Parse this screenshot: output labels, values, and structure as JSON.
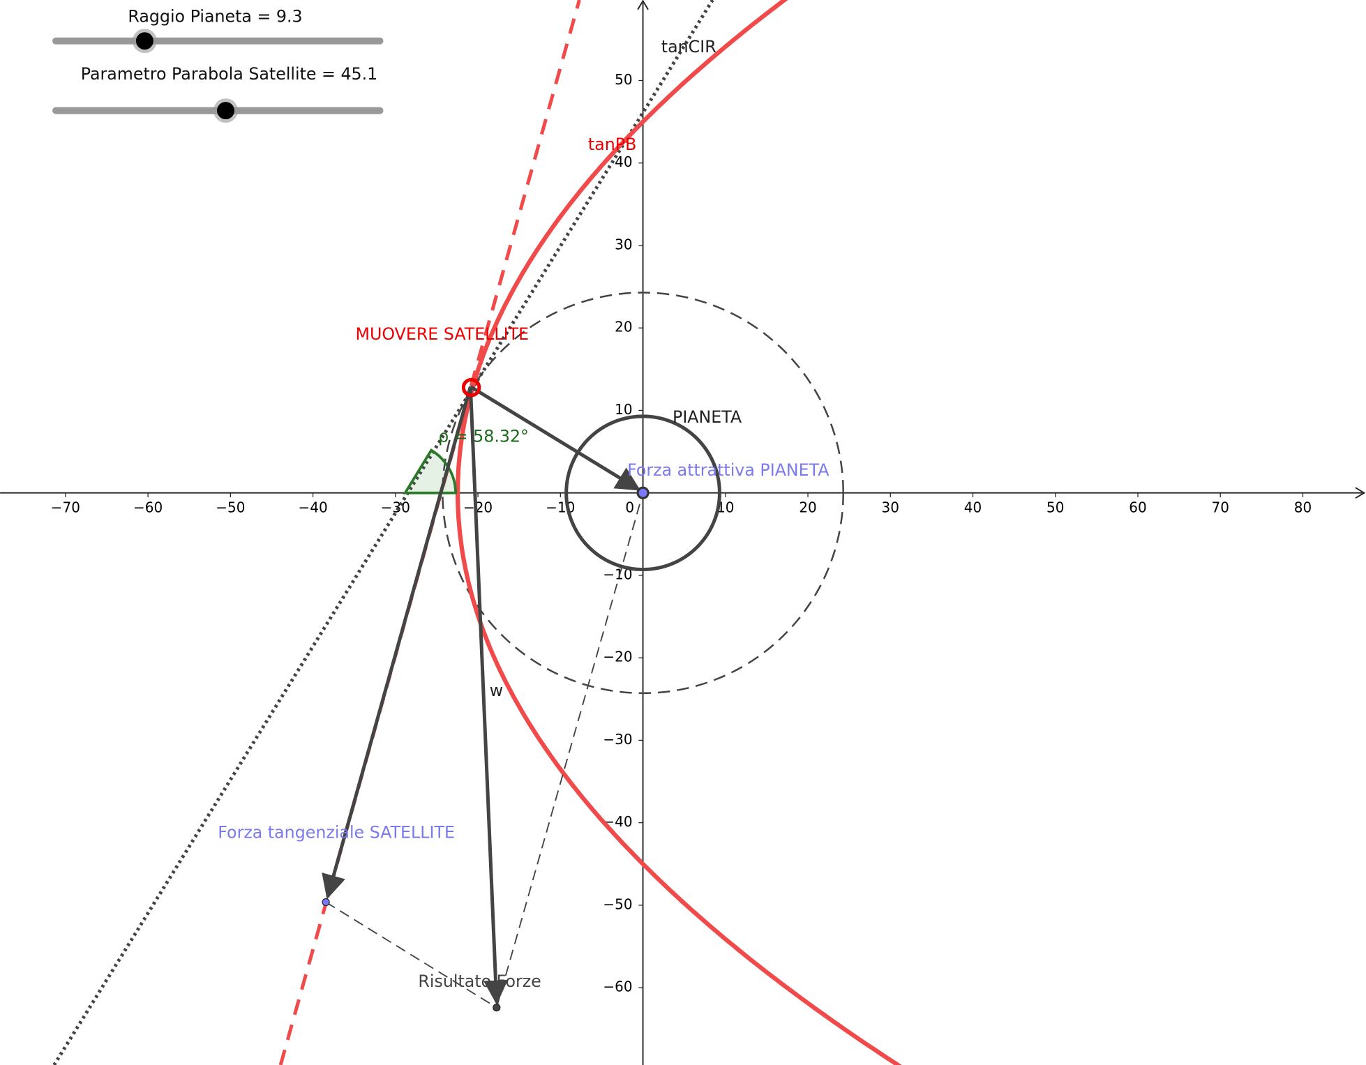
{
  "sliders": [
    {
      "label": "Raggio Pianeta = 9.3"
    },
    {
      "label": "Parametro Parabola Satellite = 45.1"
    }
  ],
  "axes": {
    "x_ticks": [
      {
        "value": -70,
        "label": "−70"
      },
      {
        "value": -60,
        "label": "−60"
      },
      {
        "value": -50,
        "label": "−50"
      },
      {
        "value": -40,
        "label": "−40"
      },
      {
        "value": -30,
        "label": "−30"
      },
      {
        "value": -20,
        "label": "−20"
      },
      {
        "value": -10,
        "label": "−10"
      },
      0,
      10,
      20,
      30,
      40,
      50,
      60,
      70,
      80
    ],
    "y_ticks": [
      50,
      40,
      30,
      20,
      10,
      {
        "value": -10,
        "label": "−10"
      },
      {
        "value": -20,
        "label": "−20"
      },
      {
        "value": -30,
        "label": "−30"
      },
      {
        "value": -40,
        "label": "−40"
      },
      {
        "value": -50,
        "label": "−50"
      },
      {
        "value": -60,
        "label": "−60"
      }
    ]
  },
  "labels": {
    "tancir": "tanCIR",
    "tanpb": "tanPB",
    "satellite": "MUOVERE SATELLITE",
    "planet": "PIANETA",
    "angle": "ρ = 58.32°",
    "attractive_force": "Forza attrattiva PIANETA",
    "tangential_force": "Forza tangenziale SATELLITE",
    "w": "w",
    "resultant": "Risultato Forze"
  }
}
